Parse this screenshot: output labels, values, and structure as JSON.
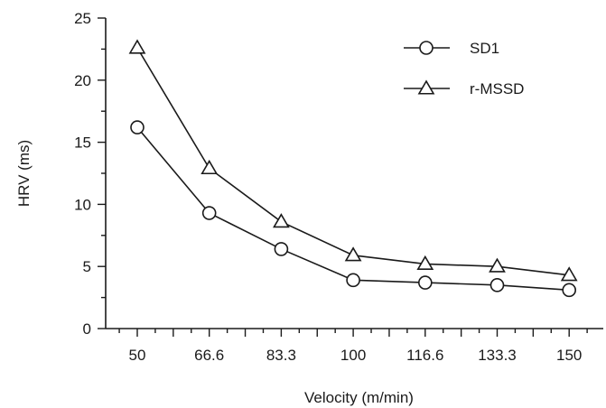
{
  "chart_data": {
    "type": "line",
    "title": "",
    "xlabel": "Velocity (m/min)",
    "ylabel": "HRV (ms)",
    "categories": [
      "50",
      "66.6",
      "83.3",
      "100",
      "116.6",
      "133.3",
      "150"
    ],
    "ylim": [
      0,
      25
    ],
    "yticks": [
      "0",
      "5",
      "10",
      "15",
      "20",
      "25"
    ],
    "grid": false,
    "legend_position": "top-right",
    "series": [
      {
        "name": "SD1",
        "marker": "circle",
        "values": [
          16.2,
          9.3,
          6.4,
          3.9,
          3.7,
          3.5,
          3.1
        ]
      },
      {
        "name": "r-MSSD",
        "marker": "triangle",
        "values": [
          22.6,
          12.9,
          8.6,
          5.9,
          5.2,
          5.0,
          4.3
        ]
      }
    ]
  }
}
